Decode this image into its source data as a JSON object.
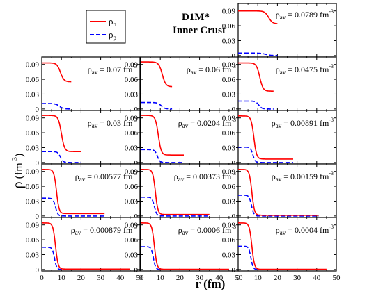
{
  "chart_data": {
    "type": "line",
    "title": "D1M*",
    "subtitle": "Inner Crust",
    "ylabel": {
      "base": "ρ",
      "open": " (fm",
      "exp": "-3",
      "close": ")"
    },
    "xlabel": "r (fm)",
    "legend": {
      "placement": "top-left",
      "entries": [
        {
          "base": "ρ",
          "sub": "n",
          "color": "#ff0000",
          "style": "solid"
        },
        {
          "base": "ρ",
          "sub": "p",
          "color": "#0000ff",
          "style": "dashed"
        }
      ]
    },
    "xlim": [
      0,
      50
    ],
    "ylim": [
      -0.003,
      0.105
    ],
    "x_ticks": [
      "0",
      "10",
      "20",
      "30",
      "40",
      "50"
    ],
    "y_ticks": [
      "0",
      "0.03",
      "0.06",
      "0.09"
    ],
    "label_prefix": "ρ",
    "label_sub": "av",
    "label_unit": "fm",
    "label_exp": "-3",
    "panels": [
      {
        "rho_av": "0.0789",
        "R": 20,
        "n": {
          "c": 0.09,
          "o": 0.064,
          "r0": 15.5,
          "a": 1.0
        },
        "p": {
          "c": 0.005,
          "o": 0.0,
          "r0": 14,
          "a": 1.3
        }
      },
      {
        "rho_av": "0.07",
        "R": 15,
        "n": {
          "c": 0.093,
          "o": 0.055,
          "r0": 9.5,
          "a": 0.9
        },
        "p": {
          "c": 0.011,
          "o": 0.0,
          "r0": 9,
          "a": 1.0
        }
      },
      {
        "rho_av": "0.06",
        "R": 16,
        "n": {
          "c": 0.095,
          "o": 0.045,
          "r0": 11,
          "a": 0.9
        },
        "p": {
          "c": 0.013,
          "o": 0.0,
          "r0": 10.5,
          "a": 0.9
        }
      },
      {
        "rho_av": "0.0475",
        "R": 18,
        "n": {
          "c": 0.093,
          "o": 0.036,
          "r0": 11,
          "a": 0.85
        },
        "p": {
          "c": 0.016,
          "o": 0.0,
          "r0": 10.5,
          "a": 0.8
        }
      },
      {
        "rho_av": "0.03",
        "R": 20,
        "n": {
          "c": 0.095,
          "o": 0.022,
          "r0": 10,
          "a": 0.8
        },
        "p": {
          "c": 0.022,
          "o": 0.0,
          "r0": 9.5,
          "a": 0.7
        }
      },
      {
        "rho_av": "0.0204",
        "R": 22,
        "n": {
          "c": 0.095,
          "o": 0.015,
          "r0": 9,
          "a": 0.75
        },
        "p": {
          "c": 0.026,
          "o": 0.0,
          "r0": 8.5,
          "a": 0.65
        }
      },
      {
        "rho_av": "0.00891",
        "R": 28,
        "n": {
          "c": 0.094,
          "o": 0.007,
          "r0": 8,
          "a": 0.7
        },
        "p": {
          "c": 0.031,
          "o": 0.0,
          "r0": 7.5,
          "a": 0.6
        }
      },
      {
        "rho_av": "0.00577",
        "R": 32,
        "n": {
          "c": 0.094,
          "o": 0.005,
          "r0": 7.5,
          "a": 0.65
        },
        "p": {
          "c": 0.036,
          "o": 0.0,
          "r0": 7,
          "a": 0.6
        }
      },
      {
        "rho_av": "0.00373",
        "R": 35,
        "n": {
          "c": 0.094,
          "o": 0.003,
          "r0": 7.5,
          "a": 0.65
        },
        "p": {
          "c": 0.038,
          "o": 0.0,
          "r0": 7,
          "a": 0.6
        }
      },
      {
        "rho_av": "0.00159",
        "R": 41,
        "n": {
          "c": 0.094,
          "o": 0.0015,
          "r0": 7,
          "a": 0.65
        },
        "p": {
          "c": 0.042,
          "o": 0.0,
          "r0": 6.8,
          "a": 0.6
        }
      },
      {
        "rho_av": "0.000879",
        "R": 45,
        "n": {
          "c": 0.094,
          "o": 0.0008,
          "r0": 7,
          "a": 0.65
        },
        "p": {
          "c": 0.045,
          "o": 0.0,
          "r0": 6.5,
          "a": 0.55
        }
      },
      {
        "rho_av": "0.0006",
        "R": 45,
        "n": {
          "c": 0.094,
          "o": 0.0005,
          "r0": 7,
          "a": 0.65
        },
        "p": {
          "c": 0.046,
          "o": 0.0,
          "r0": 6.5,
          "a": 0.55
        }
      },
      {
        "rho_av": "0.0004",
        "R": 45,
        "n": {
          "c": 0.094,
          "o": 0.0004,
          "r0": 7,
          "a": 0.65
        },
        "p": {
          "c": 0.047,
          "o": 0.0,
          "r0": 6.5,
          "a": 0.55
        }
      }
    ]
  }
}
